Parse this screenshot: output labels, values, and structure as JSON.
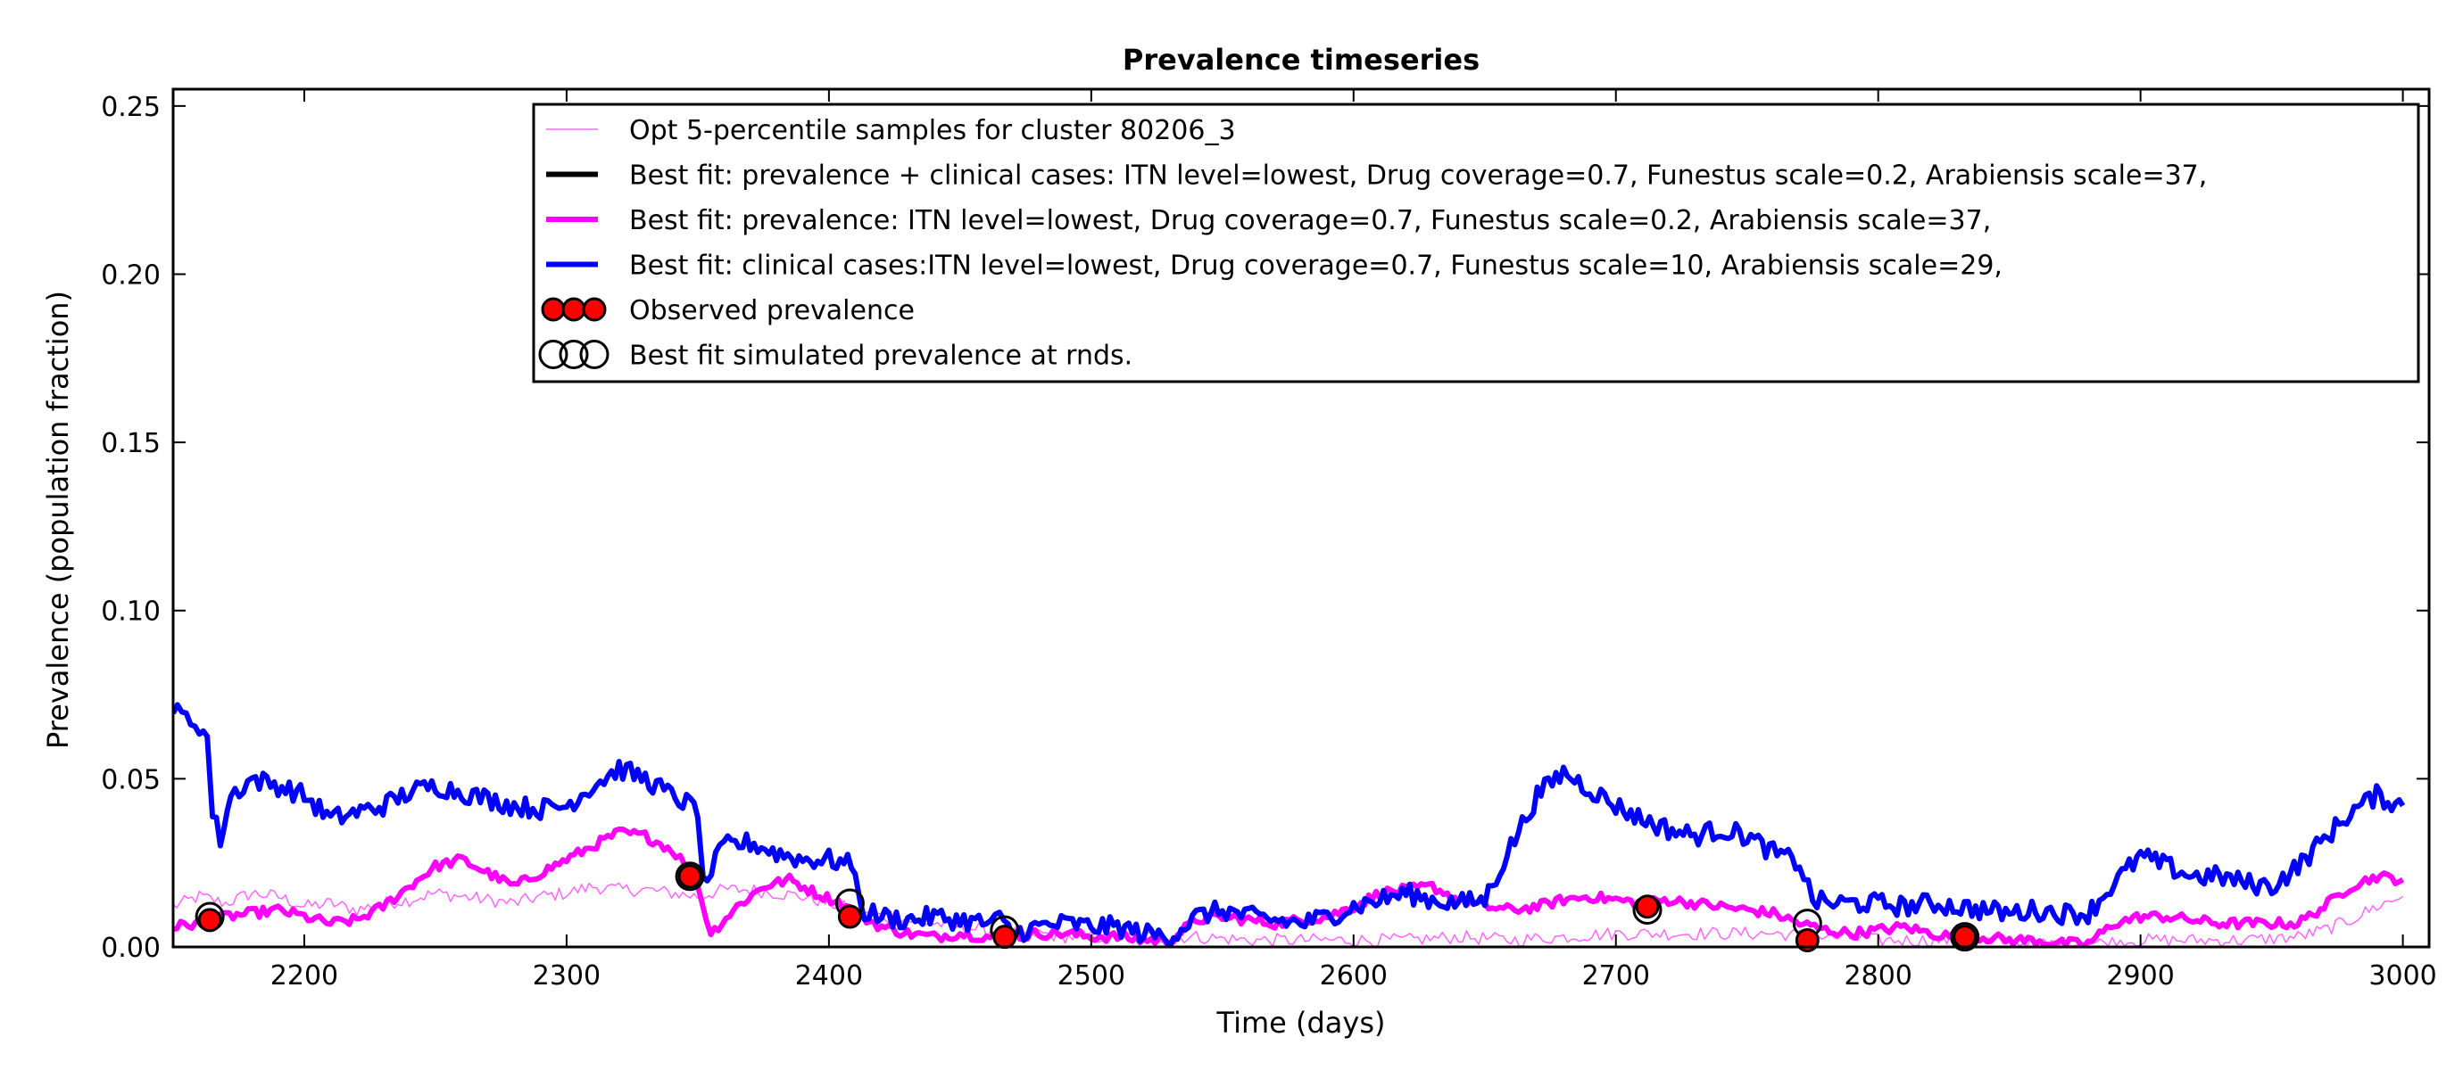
{
  "chart_data": {
    "type": "line",
    "title": "Prevalence timeseries",
    "xlabel": "Time (days)",
    "ylabel": "Prevalence (population fraction)",
    "xlim": [
      2150,
      3010
    ],
    "ylim": [
      0.0,
      0.255
    ],
    "x_ticks": [
      2200,
      2300,
      2400,
      2500,
      2600,
      2700,
      2800,
      2900,
      3000
    ],
    "y_ticks": [
      0.0,
      0.05,
      0.1,
      0.15,
      0.2,
      0.25
    ],
    "y_tick_labels": [
      "0.00",
      "0.05",
      "0.10",
      "0.15",
      "0.20",
      "0.25"
    ],
    "grid": false,
    "legend_position": "upper-right",
    "series": [
      {
        "name": "Opt 5-percentile samples for cluster 80206_3",
        "color": "#ff66ff",
        "style": "thin",
        "points": [
          [
            2150,
            0.012
          ],
          [
            2160,
            0.015
          ],
          [
            2170,
            0.013
          ],
          [
            2180,
            0.016
          ],
          [
            2190,
            0.015
          ],
          [
            2200,
            0.012
          ],
          [
            2210,
            0.013
          ],
          [
            2220,
            0.011
          ],
          [
            2230,
            0.013
          ],
          [
            2240,
            0.014
          ],
          [
            2250,
            0.016
          ],
          [
            2260,
            0.015
          ],
          [
            2270,
            0.014
          ],
          [
            2280,
            0.013
          ],
          [
            2290,
            0.015
          ],
          [
            2300,
            0.016
          ],
          [
            2310,
            0.018
          ],
          [
            2320,
            0.017
          ],
          [
            2330,
            0.017
          ],
          [
            2340,
            0.016
          ],
          [
            2350,
            0.015
          ],
          [
            2360,
            0.017
          ],
          [
            2370,
            0.017
          ],
          [
            2380,
            0.016
          ],
          [
            2390,
            0.015
          ],
          [
            2400,
            0.013
          ],
          [
            2410,
            0.011
          ],
          [
            2420,
            0.009
          ],
          [
            2430,
            0.008
          ],
          [
            2440,
            0.007
          ],
          [
            2450,
            0.006
          ],
          [
            2460,
            0.005
          ],
          [
            2470,
            0.004
          ],
          [
            2480,
            0.004
          ],
          [
            2490,
            0.003
          ],
          [
            2500,
            0.003
          ],
          [
            2520,
            0.003
          ],
          [
            2540,
            0.003
          ],
          [
            2560,
            0.002
          ],
          [
            2580,
            0.002
          ],
          [
            2600,
            0.002
          ],
          [
            2620,
            0.002
          ],
          [
            2640,
            0.003
          ],
          [
            2660,
            0.002
          ],
          [
            2680,
            0.003
          ],
          [
            2700,
            0.004
          ],
          [
            2720,
            0.004
          ],
          [
            2740,
            0.004
          ],
          [
            2760,
            0.004
          ],
          [
            2780,
            0.003
          ],
          [
            2800,
            0.002
          ],
          [
            2820,
            0.002
          ],
          [
            2840,
            0.002
          ],
          [
            2860,
            0.001
          ],
          [
            2880,
            0.001
          ],
          [
            2900,
            0.002
          ],
          [
            2920,
            0.002
          ],
          [
            2940,
            0.002
          ],
          [
            2960,
            0.003
          ],
          [
            2970,
            0.005
          ],
          [
            2980,
            0.008
          ],
          [
            2990,
            0.012
          ],
          [
            3000,
            0.015
          ]
        ]
      },
      {
        "name": "Best fit: prevalence + clinical cases: ITN level=lowest, Drug coverage=0.7, Funestus scale=0.2, Arabiensis scale=37,",
        "color": "#000000",
        "style": "thick",
        "points": []
      },
      {
        "name": "Best fit: prevalence: ITN level=lowest, Drug coverage=0.7, Funestus scale=0.2, Arabiensis scale=37,",
        "color": "#ff00ff",
        "style": "thick",
        "points": [
          [
            2150,
            0.006
          ],
          [
            2160,
            0.007
          ],
          [
            2170,
            0.009
          ],
          [
            2180,
            0.01
          ],
          [
            2190,
            0.011
          ],
          [
            2200,
            0.009
          ],
          [
            2210,
            0.007
          ],
          [
            2220,
            0.008
          ],
          [
            2230,
            0.012
          ],
          [
            2240,
            0.018
          ],
          [
            2250,
            0.024
          ],
          [
            2260,
            0.026
          ],
          [
            2270,
            0.022
          ],
          [
            2280,
            0.018
          ],
          [
            2290,
            0.022
          ],
          [
            2300,
            0.026
          ],
          [
            2310,
            0.03
          ],
          [
            2320,
            0.034
          ],
          [
            2330,
            0.033
          ],
          [
            2340,
            0.029
          ],
          [
            2345,
            0.025
          ],
          [
            2350,
            0.018
          ],
          [
            2355,
            0.004
          ],
          [
            2365,
            0.012
          ],
          [
            2375,
            0.018
          ],
          [
            2385,
            0.02
          ],
          [
            2395,
            0.016
          ],
          [
            2405,
            0.013
          ],
          [
            2410,
            0.01
          ],
          [
            2420,
            0.006
          ],
          [
            2430,
            0.004
          ],
          [
            2440,
            0.003
          ],
          [
            2450,
            0.004
          ],
          [
            2460,
            0.003
          ],
          [
            2470,
            0.003
          ],
          [
            2480,
            0.004
          ],
          [
            2490,
            0.004
          ],
          [
            2500,
            0.003
          ],
          [
            2510,
            0.003
          ],
          [
            2520,
            0.002
          ],
          [
            2530,
            0.002
          ],
          [
            2540,
            0.008
          ],
          [
            2550,
            0.009
          ],
          [
            2560,
            0.008
          ],
          [
            2570,
            0.007
          ],
          [
            2580,
            0.008
          ],
          [
            2590,
            0.009
          ],
          [
            2600,
            0.012
          ],
          [
            2610,
            0.016
          ],
          [
            2620,
            0.017
          ],
          [
            2630,
            0.018
          ],
          [
            2640,
            0.014
          ],
          [
            2650,
            0.012
          ],
          [
            2660,
            0.011
          ],
          [
            2670,
            0.012
          ],
          [
            2680,
            0.014
          ],
          [
            2690,
            0.015
          ],
          [
            2700,
            0.014
          ],
          [
            2710,
            0.013
          ],
          [
            2720,
            0.014
          ],
          [
            2730,
            0.013
          ],
          [
            2740,
            0.012
          ],
          [
            2750,
            0.011
          ],
          [
            2760,
            0.01
          ],
          [
            2770,
            0.007
          ],
          [
            2780,
            0.005
          ],
          [
            2790,
            0.004
          ],
          [
            2800,
            0.005
          ],
          [
            2810,
            0.006
          ],
          [
            2820,
            0.004
          ],
          [
            2830,
            0.003
          ],
          [
            2840,
            0.003
          ],
          [
            2850,
            0.002
          ],
          [
            2860,
            0.002
          ],
          [
            2870,
            0.001
          ],
          [
            2880,
            0.001
          ],
          [
            2890,
            0.007
          ],
          [
            2900,
            0.009
          ],
          [
            2910,
            0.009
          ],
          [
            2920,
            0.008
          ],
          [
            2930,
            0.007
          ],
          [
            2940,
            0.007
          ],
          [
            2950,
            0.007
          ],
          [
            2960,
            0.007
          ],
          [
            2970,
            0.012
          ],
          [
            2980,
            0.018
          ],
          [
            2990,
            0.021
          ],
          [
            3000,
            0.02
          ]
        ]
      },
      {
        "name": "Best fit: clinical cases:ITN level=lowest, Drug coverage=0.7, Funestus scale=10, Arabiensis scale=29,",
        "color": "#0000ff",
        "style": "thick",
        "points": [
          [
            2150,
            0.07
          ],
          [
            2155,
            0.068
          ],
          [
            2160,
            0.066
          ],
          [
            2163,
            0.062
          ],
          [
            2165,
            0.04
          ],
          [
            2168,
            0.032
          ],
          [
            2172,
            0.045
          ],
          [
            2180,
            0.05
          ],
          [
            2190,
            0.048
          ],
          [
            2200,
            0.045
          ],
          [
            2210,
            0.038
          ],
          [
            2220,
            0.04
          ],
          [
            2230,
            0.042
          ],
          [
            2240,
            0.046
          ],
          [
            2250,
            0.048
          ],
          [
            2260,
            0.046
          ],
          [
            2270,
            0.044
          ],
          [
            2280,
            0.042
          ],
          [
            2290,
            0.041
          ],
          [
            2300,
            0.042
          ],
          [
            2310,
            0.048
          ],
          [
            2320,
            0.053
          ],
          [
            2330,
            0.05
          ],
          [
            2340,
            0.045
          ],
          [
            2350,
            0.041
          ],
          [
            2352,
            0.018
          ],
          [
            2360,
            0.03
          ],
          [
            2370,
            0.031
          ],
          [
            2380,
            0.028
          ],
          [
            2390,
            0.026
          ],
          [
            2400,
            0.026
          ],
          [
            2410,
            0.024
          ],
          [
            2412,
            0.011
          ],
          [
            2420,
            0.009
          ],
          [
            2430,
            0.008
          ],
          [
            2440,
            0.009
          ],
          [
            2450,
            0.008
          ],
          [
            2460,
            0.007
          ],
          [
            2465,
            0.008
          ],
          [
            2470,
            0.004
          ],
          [
            2480,
            0.006
          ],
          [
            2490,
            0.007
          ],
          [
            2500,
            0.006
          ],
          [
            2510,
            0.006
          ],
          [
            2520,
            0.004
          ],
          [
            2530,
            0.003
          ],
          [
            2540,
            0.009
          ],
          [
            2550,
            0.011
          ],
          [
            2560,
            0.009
          ],
          [
            2570,
            0.008
          ],
          [
            2580,
            0.007
          ],
          [
            2590,
            0.009
          ],
          [
            2600,
            0.012
          ],
          [
            2610,
            0.014
          ],
          [
            2620,
            0.016
          ],
          [
            2630,
            0.014
          ],
          [
            2640,
            0.013
          ],
          [
            2650,
            0.014
          ],
          [
            2660,
            0.03
          ],
          [
            2670,
            0.045
          ],
          [
            2680,
            0.052
          ],
          [
            2690,
            0.047
          ],
          [
            2700,
            0.042
          ],
          [
            2710,
            0.038
          ],
          [
            2720,
            0.035
          ],
          [
            2730,
            0.033
          ],
          [
            2740,
            0.035
          ],
          [
            2750,
            0.033
          ],
          [
            2760,
            0.028
          ],
          [
            2770,
            0.025
          ],
          [
            2775,
            0.014
          ],
          [
            2780,
            0.013
          ],
          [
            2790,
            0.013
          ],
          [
            2800,
            0.013
          ],
          [
            2810,
            0.012
          ],
          [
            2820,
            0.013
          ],
          [
            2830,
            0.012
          ],
          [
            2840,
            0.011
          ],
          [
            2850,
            0.01
          ],
          [
            2860,
            0.011
          ],
          [
            2870,
            0.01
          ],
          [
            2880,
            0.01
          ],
          [
            2890,
            0.019
          ],
          [
            2900,
            0.027
          ],
          [
            2910,
            0.024
          ],
          [
            2920,
            0.021
          ],
          [
            2930,
            0.021
          ],
          [
            2940,
            0.019
          ],
          [
            2950,
            0.018
          ],
          [
            2960,
            0.024
          ],
          [
            2970,
            0.032
          ],
          [
            2980,
            0.04
          ],
          [
            2990,
            0.045
          ],
          [
            3000,
            0.042
          ]
        ]
      },
      {
        "name": "Observed prevalence",
        "color": "#ff0000",
        "style": "markers-filled",
        "points": [
          [
            2164,
            0.008
          ],
          [
            2347,
            0.021
          ],
          [
            2408,
            0.009
          ],
          [
            2467,
            0.003
          ],
          [
            2712,
            0.012
          ],
          [
            2773,
            0.002
          ],
          [
            2833,
            0.003
          ]
        ]
      },
      {
        "name": "Best fit simulated prevalence at rnds.",
        "color": "#000000",
        "style": "markers-open",
        "points": [
          [
            2164,
            0.009
          ],
          [
            2347,
            0.021
          ],
          [
            2408,
            0.013
          ],
          [
            2467,
            0.005
          ],
          [
            2712,
            0.011
          ],
          [
            2773,
            0.007
          ],
          [
            2833,
            0.003
          ]
        ]
      }
    ]
  }
}
